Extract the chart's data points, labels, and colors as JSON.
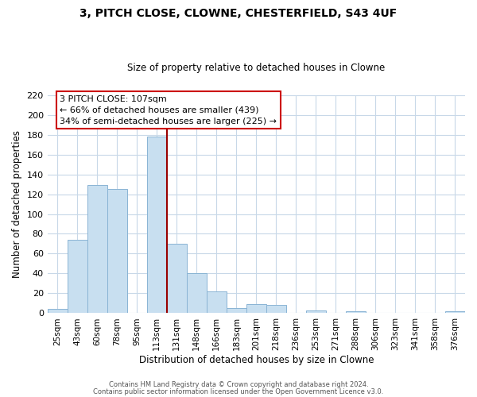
{
  "title": "3, PITCH CLOSE, CLOWNE, CHESTERFIELD, S43 4UF",
  "subtitle": "Size of property relative to detached houses in Clowne",
  "xlabel": "Distribution of detached houses by size in Clowne",
  "ylabel": "Number of detached properties",
  "bar_color": "#c8dff0",
  "bar_edge_color": "#8ab4d4",
  "categories": [
    "25sqm",
    "43sqm",
    "60sqm",
    "78sqm",
    "95sqm",
    "113sqm",
    "131sqm",
    "148sqm",
    "166sqm",
    "183sqm",
    "201sqm",
    "218sqm",
    "236sqm",
    "253sqm",
    "271sqm",
    "288sqm",
    "306sqm",
    "323sqm",
    "341sqm",
    "358sqm",
    "376sqm"
  ],
  "values": [
    4,
    74,
    129,
    125,
    0,
    178,
    70,
    40,
    22,
    5,
    9,
    8,
    0,
    3,
    0,
    2,
    0,
    0,
    0,
    0,
    2
  ],
  "ylim": [
    0,
    220
  ],
  "yticks": [
    0,
    20,
    40,
    60,
    80,
    100,
    120,
    140,
    160,
    180,
    200,
    220
  ],
  "vline_x_index": 5,
  "vline_color": "#990000",
  "annotation_title": "3 PITCH CLOSE: 107sqm",
  "annotation_line1": "← 66% of detached houses are smaller (439)",
  "annotation_line2": "34% of semi-detached houses are larger (225) →",
  "annotation_box_color": "#ffffff",
  "annotation_box_edge": "#cc0000",
  "footer1": "Contains HM Land Registry data © Crown copyright and database right 2024.",
  "footer2": "Contains public sector information licensed under the Open Government Licence v3.0.",
  "background_color": "#ffffff",
  "grid_color": "#c8d8e8"
}
